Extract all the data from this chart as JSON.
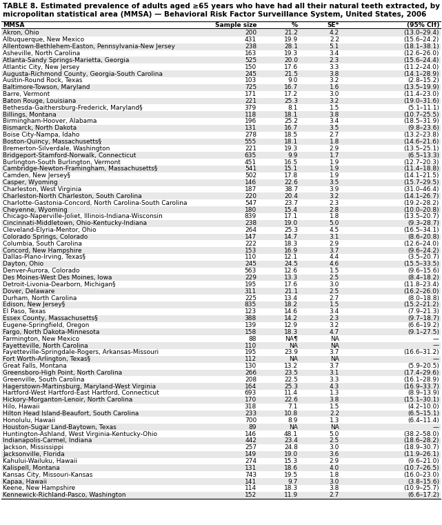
{
  "title_line1": "TABLE 8. Estimated prevalence of adults aged ≥65 years who have had all their natural teeth extracted, by metropolitan and",
  "title_line2": "micropolitan statistical area (MMSA) — Behavioral Risk Factor Surveillance System, United States, 2006",
  "col_headers": [
    "MMSA",
    "Sample size",
    "%",
    "SE*",
    "(95% CI†)"
  ],
  "rows": [
    [
      "Akron, Ohio",
      "200",
      "21.2",
      "4.2",
      "(13.0–29.4)"
    ],
    [
      "Albuquerque, New Mexico",
      "431",
      "19.9",
      "2.2",
      "(15.6–24.2)"
    ],
    [
      "Allentown-Bethlehem-Easton, Pennsylvania-New Jersey",
      "238",
      "28.1",
      "5.1",
      "(18.1–38.1)"
    ],
    [
      "Asheville, North Carolina",
      "163",
      "19.3",
      "3.4",
      "(12.6–26.0)"
    ],
    [
      "Atlanta-Sandy Springs-Marietta, Georgia",
      "525",
      "20.0",
      "2.3",
      "(15.6–24.4)"
    ],
    [
      "Atlantic City, New Jersey",
      "150",
      "17.6",
      "3.3",
      "(11.2–24.0)"
    ],
    [
      "Augusta-Richmond County, Georgia-South Carolina",
      "245",
      "21.5",
      "3.8",
      "(14.1–28.9)"
    ],
    [
      "Austin-Round Rock, Texas",
      "103",
      "9.0",
      "3.2",
      "(2.8–15.2)"
    ],
    [
      "Baltimore-Towson, Maryland",
      "725",
      "16.7",
      "1.6",
      "(13.5–19.9)"
    ],
    [
      "Barre, Vermont",
      "171",
      "17.2",
      "3.0",
      "(11.4–23.0)"
    ],
    [
      "Baton Rouge, Louisiana",
      "221",
      "25.3",
      "3.2",
      "(19.0–31.6)"
    ],
    [
      "Bethesda-Gaithersburg-Frederick, Maryland§",
      "379",
      "8.1",
      "1.5",
      "(5.1–11.1)"
    ],
    [
      "Billings, Montana",
      "118",
      "18.1",
      "3.8",
      "(10.7–25.5)"
    ],
    [
      "Birmingham-Hoover, Alabama",
      "196",
      "25.2",
      "3.4",
      "(18.5–31.9)"
    ],
    [
      "Bismarck, North Dakota",
      "131",
      "16.7",
      "3.5",
      "(9.8–23.6)"
    ],
    [
      "Boise City-Nampa, Idaho",
      "278",
      "18.5",
      "2.7",
      "(13.2–23.8)"
    ],
    [
      "Boston-Quincy, Massachusetts§",
      "555",
      "18.1",
      "1.8",
      "(14.6–21.6)"
    ],
    [
      "Bremerton-Silverdale, Washington",
      "221",
      "19.3",
      "2.9",
      "(13.5–25.1)"
    ],
    [
      "Bridgeport-Stamford-Norwalk, Connecticut",
      "635",
      "9.9",
      "1.7",
      "(6.5–13.3)"
    ],
    [
      "Burlington-South Burlington, Vermont",
      "451",
      "16.5",
      "1.9",
      "(12.7–20.3)"
    ],
    [
      "Cambridge-Newton-Framingham, Massachusetts§",
      "541",
      "15.1",
      "1.9",
      "(11.4–18.8)"
    ],
    [
      "Camden, New Jersey§",
      "502",
      "17.8",
      "1.9",
      "(14.1–21.5)"
    ],
    [
      "Casper, Wyoming",
      "146",
      "22.6",
      "3.5",
      "(15.7–29.5)"
    ],
    [
      "Charleston, West Virginia",
      "187",
      "38.7",
      "3.9",
      "(31.0–46.4)"
    ],
    [
      "Charleston-North Charleston, South Carolina",
      "220",
      "20.4",
      "3.2",
      "(14.1–26.7)"
    ],
    [
      "Charlotte-Gastonia-Concord, North Carolina-South Carolina",
      "547",
      "23.7",
      "2.3",
      "(19.2–28.2)"
    ],
    [
      "Cheyenne, Wyoming",
      "180",
      "15.4",
      "2.8",
      "(10.0–20.8)"
    ],
    [
      "Chicago-Naperville-Joliet, Illinois-Indiana-Wisconsin",
      "839",
      "17.1",
      "1.8",
      "(13.5–20.7)"
    ],
    [
      "Cincinnati-Middletown, Ohio-Kentucky-Indiana",
      "238",
      "19.0",
      "5.0",
      "(9.3–28.7)"
    ],
    [
      "Cleveland-Elyria-Mentor, Ohio",
      "264",
      "25.3",
      "4.5",
      "(16.5–34.1)"
    ],
    [
      "Colorado Springs, Colorado",
      "147",
      "14.7",
      "3.1",
      "(8.6–20.8)"
    ],
    [
      "Columbia, South Carolina",
      "222",
      "18.3",
      "2.9",
      "(12.6–24.0)"
    ],
    [
      "Concord, New Hampshire",
      "153",
      "16.9",
      "3.7",
      "(9.6–24.2)"
    ],
    [
      "Dallas-Plano-Irving, Texas§",
      "110",
      "12.1",
      "4.4",
      "(3.5–20.7)"
    ],
    [
      "Dayton, Ohio",
      "245",
      "24.5",
      "4.6",
      "(15.5–33.5)"
    ],
    [
      "Denver-Aurora, Colorado",
      "563",
      "12.6",
      "1.5",
      "(9.6–15.6)"
    ],
    [
      "Des Moines-West Des Moines, Iowa",
      "229",
      "13.3",
      "2.5",
      "(8.4–18.2)"
    ],
    [
      "Detroit-Livonia-Dearborn, Michigan§",
      "195",
      "17.6",
      "3.0",
      "(11.8–23.4)"
    ],
    [
      "Dover, Delaware",
      "311",
      "21.1",
      "2.5",
      "(16.2–26.0)"
    ],
    [
      "Durham, North Carolina",
      "225",
      "13.4",
      "2.7",
      "(8.0–18.8)"
    ],
    [
      "Edison, New Jersey§",
      "835",
      "18.2",
      "1.5",
      "(15.2–21.2)"
    ],
    [
      "El Paso, Texas",
      "123",
      "14.6",
      "3.4",
      "(7.9–21.3)"
    ],
    [
      "Essex County, Massachusetts§",
      "388",
      "14.2",
      "2.3",
      "(9.7–18.7)"
    ],
    [
      "Eugene-Springfield, Oregon",
      "139",
      "12.9",
      "3.2",
      "(6.6–19.2)"
    ],
    [
      "Fargo, North Dakota-Minnesota",
      "158",
      "18.3",
      "4.7",
      "(9.1–27.5)"
    ],
    [
      "Farmington, New Mexico",
      "88",
      "NA¶",
      "NA",
      "—"
    ],
    [
      "Fayetteville, North Carolina",
      "110",
      "NA",
      "NA",
      "—"
    ],
    [
      "Fayetteville-Springdale-Rogers, Arkansas-Missouri",
      "195",
      "23.9",
      "3.7",
      "(16.6–31.2)"
    ],
    [
      "Fort Worth-Arlington, Texas§",
      "112",
      "NA",
      "NA",
      "—"
    ],
    [
      "Great Falls, Montana",
      "130",
      "13.2",
      "3.7",
      "(5.9–20.5)"
    ],
    [
      "Greensboro-High Point, North Carolina",
      "266",
      "23.5",
      "3.1",
      "(17.4–29.6)"
    ],
    [
      "Greenville, South Carolina",
      "208",
      "22.5",
      "3.3",
      "(16.1–28.9)"
    ],
    [
      "Hagerstown-Martinsburg, Maryland-West Virginia",
      "164",
      "25.3",
      "4.3",
      "(16.9–33.7)"
    ],
    [
      "Hartford-West Hartford-East Hartford, Connecticut",
      "693",
      "11.4",
      "1.3",
      "(8.9–13.9)"
    ],
    [
      "Hickory-Morganton-Lenoir, North Carolina",
      "170",
      "22.6",
      "3.8",
      "(15.1–30.1)"
    ],
    [
      "Hilo, Hawaii",
      "318",
      "7.1",
      "1.5",
      "(4.2–10.0)"
    ],
    [
      "Hilton Head Island-Beaufort, South Carolina",
      "233",
      "10.8",
      "2.2",
      "(6.5–15.1)"
    ],
    [
      "Honolulu, Hawaii",
      "700",
      "8.9",
      "1.3",
      "(6.4–11.4)"
    ],
    [
      "Houston-Sugar Land-Baytown, Texas",
      "89",
      "NA",
      "NA",
      "—"
    ],
    [
      "Huntington-Ashland, West Virginia-Kentucky-Ohio",
      "146",
      "48.1",
      "5.0",
      "(38.2–58.0)"
    ],
    [
      "Indianapolis-Carmel, Indiana",
      "442",
      "23.4",
      "2.5",
      "(18.6–28.2)"
    ],
    [
      "Jackson, Mississippi",
      "257",
      "24.8",
      "3.0",
      "(18.9–30.7)"
    ],
    [
      "Jacksonville, Florida",
      "149",
      "19.0",
      "3.6",
      "(11.9–26.1)"
    ],
    [
      "Kahului-Wailuku, Hawaii",
      "274",
      "15.3",
      "2.9",
      "(9.6–21.0)"
    ],
    [
      "Kalispell, Montana",
      "131",
      "18.6",
      "4.0",
      "(10.7–26.5)"
    ],
    [
      "Kansas City, Missouri-Kansas",
      "743",
      "19.5",
      "1.8",
      "(16.0–23.0)"
    ],
    [
      "Kapaa, Hawaii",
      "141",
      "9.7",
      "3.0",
      "(3.8–15.6)"
    ],
    [
      "Keene, New Hampshire",
      "114",
      "18.3",
      "3.8",
      "(10.9–25.7)"
    ],
    [
      "Kennewick-Richland-Pasco, Washington",
      "152",
      "11.9",
      "2.7",
      "(6.6–17.2)"
    ]
  ],
  "font_size": 6.5,
  "header_font_size": 6.5,
  "title_font_size": 7.5,
  "bg_colors": [
    "#e8e8e8",
    "#ffffff"
  ]
}
